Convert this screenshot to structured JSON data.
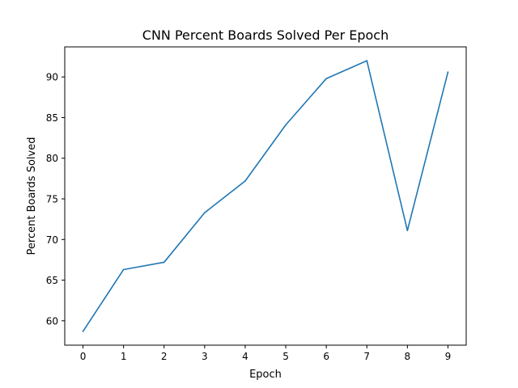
{
  "chart_data": {
    "type": "line",
    "title": "CNN Percent Boards Solved Per Epoch",
    "xlabel": "Epoch",
    "ylabel": "Percent Boards Solved",
    "x": [
      0,
      1,
      2,
      3,
      4,
      5,
      6,
      7,
      8,
      9
    ],
    "series": [
      {
        "values": [
          58.7,
          66.3,
          67.2,
          73.3,
          77.2,
          84.1,
          89.8,
          92.0,
          71.1,
          90.6
        ]
      }
    ],
    "xlim": [
      -0.45,
      9.45
    ],
    "ylim": [
      57.0,
      93.7
    ],
    "xticks": [
      0,
      1,
      2,
      3,
      4,
      5,
      6,
      7,
      8,
      9
    ],
    "yticks": [
      60,
      65,
      70,
      75,
      80,
      85,
      90
    ],
    "grid": false,
    "line_color": "#1f77b4"
  }
}
